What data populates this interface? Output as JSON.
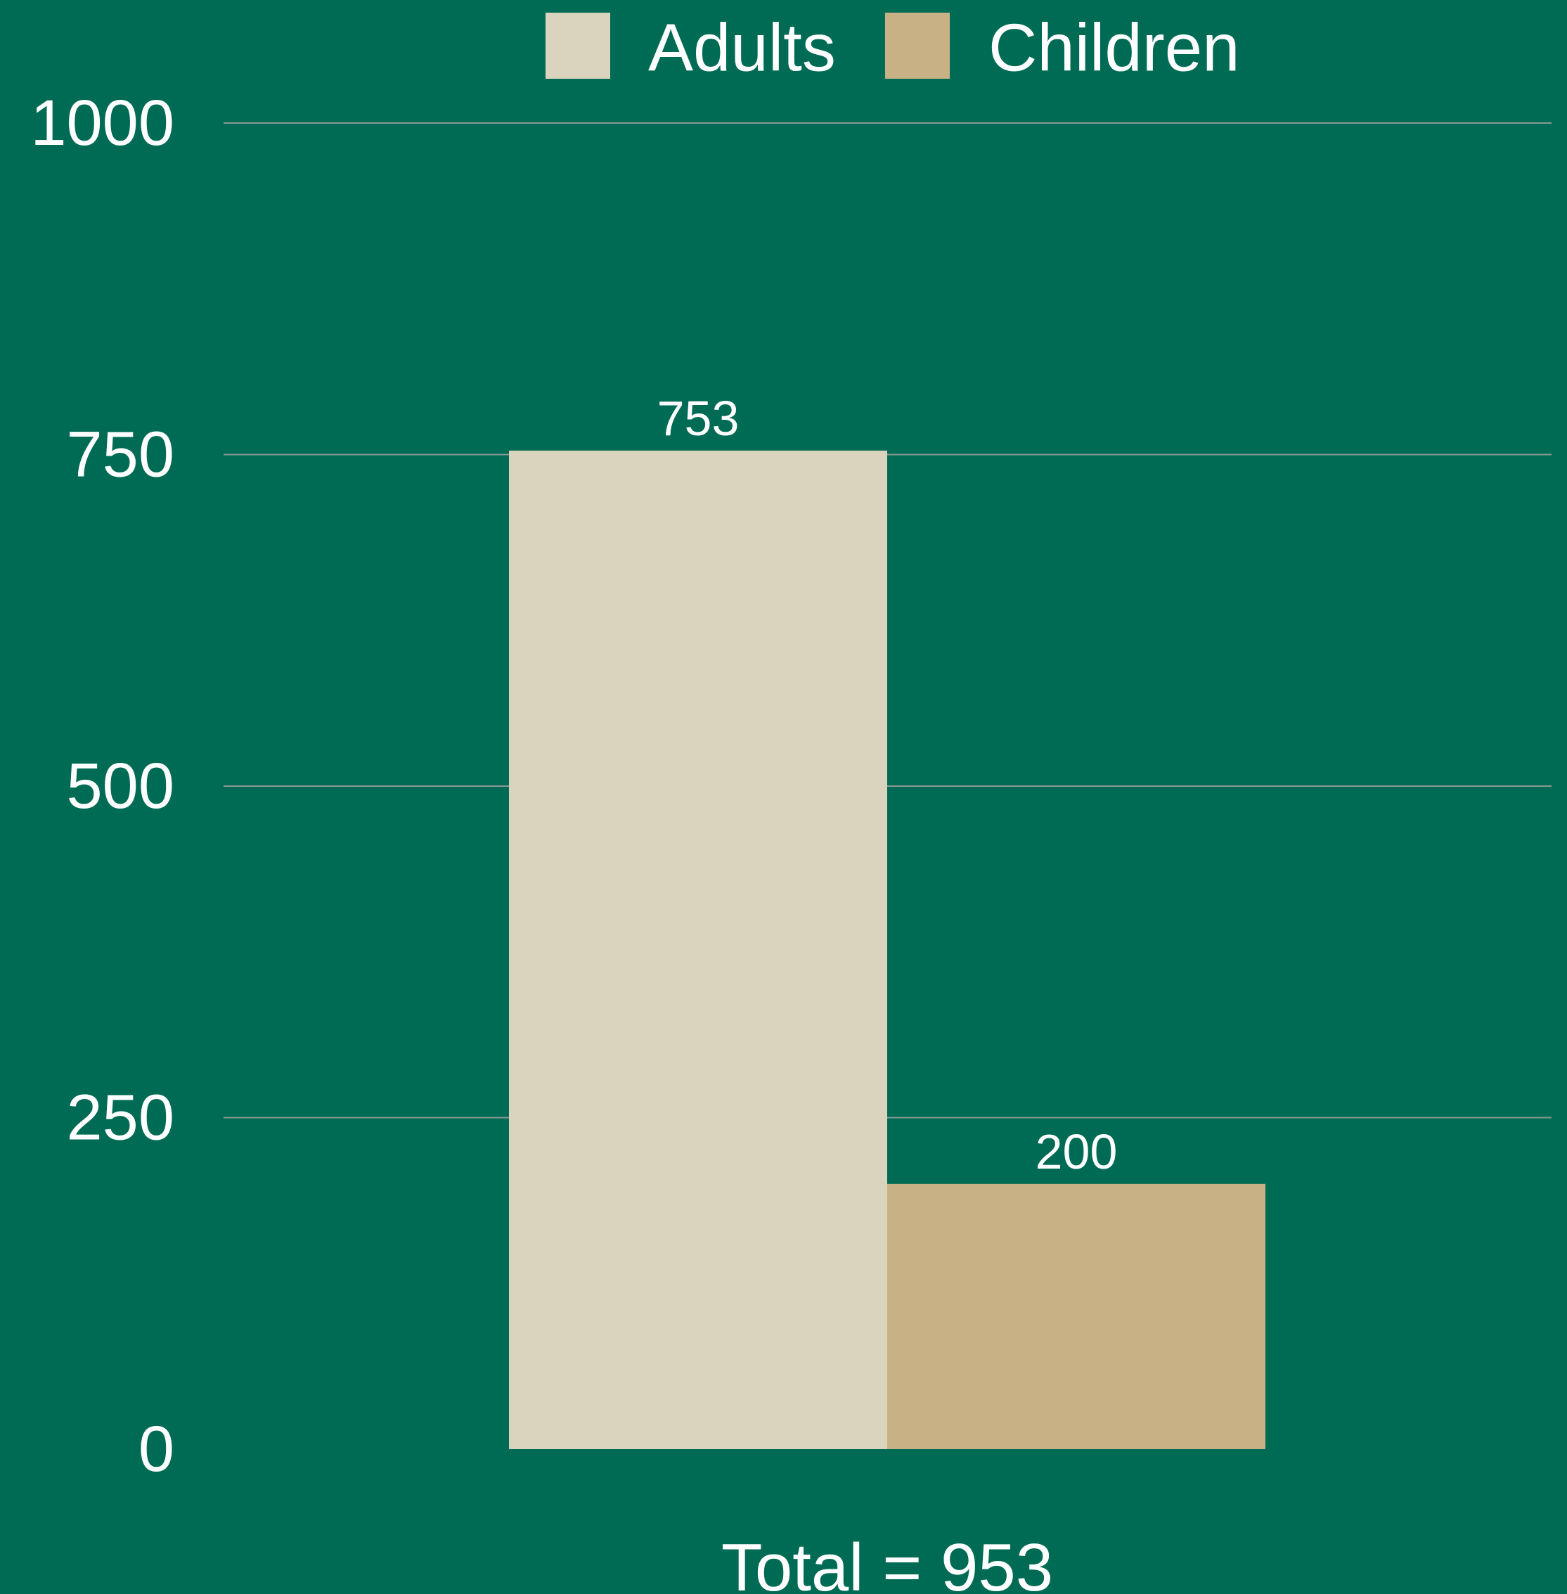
{
  "chart_data": {
    "type": "bar",
    "categories": [
      "Total = 953"
    ],
    "series": [
      {
        "name": "Adults",
        "values": [
          753
        ],
        "color": "#DAD4BE"
      },
      {
        "name": "Children",
        "values": [
          200
        ],
        "color": "#C8B184"
      }
    ],
    "title": "",
    "xlabel": "",
    "ylabel": "",
    "ylim": [
      0,
      1000
    ],
    "yticks": [
      0,
      250,
      500,
      750,
      1000
    ],
    "grid": true,
    "legend_position": "top-center"
  },
  "colors": {
    "background": "#006B54",
    "text": "#FFFFFF",
    "grid": "#8A9A93"
  }
}
